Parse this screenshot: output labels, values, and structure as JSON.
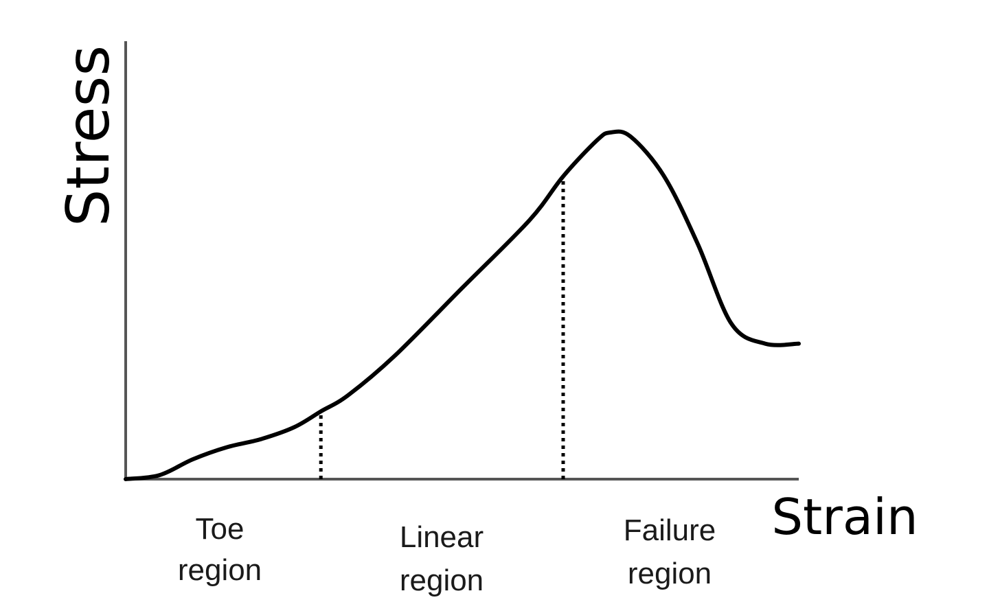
{
  "chart_data": {
    "type": "line",
    "xlabel": "Strain",
    "ylabel": "Stress",
    "grid": false,
    "legend": "none",
    "series": [
      {
        "x": [
          0,
          0.05,
          0.1,
          0.15,
          0.2,
          0.25,
          0.29,
          0.33,
          0.4,
          0.5,
          0.6,
          0.65,
          0.7,
          0.72,
          0.75,
          0.8,
          0.85,
          0.9,
          0.95,
          1.0
        ],
        "values": [
          0,
          0.01,
          0.05,
          0.08,
          0.1,
          0.13,
          0.17,
          0.21,
          0.31,
          0.48,
          0.65,
          0.76,
          0.85,
          0.87,
          0.86,
          0.76,
          0.59,
          0.39,
          0.34,
          0.34
        ]
      }
    ],
    "boundaries": [
      0.29,
      0.65
    ],
    "regions": [
      {
        "line1": "Toe",
        "line2": "region"
      },
      {
        "line1": "Linear",
        "line2": "region"
      },
      {
        "line1": "Failure",
        "line2": "region"
      }
    ],
    "colors": {
      "curve": "#000000",
      "axis": "#555555",
      "boundary": "#000000"
    }
  }
}
